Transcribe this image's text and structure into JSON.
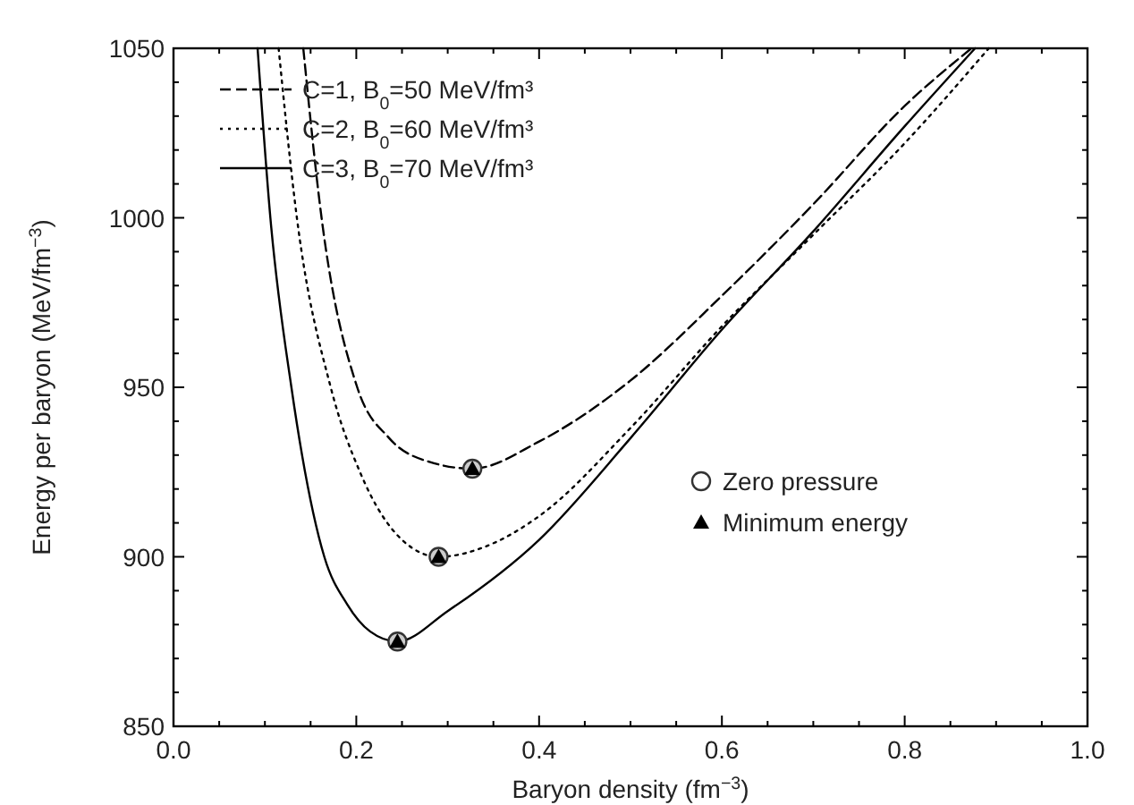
{
  "chart_data": {
    "type": "line",
    "xlabel": "Baryon density (fm$^{−3}$)",
    "ylabel": "Energy per baryon (MeV/fm$^{−3}$)",
    "xlim": [
      0,
      1
    ],
    "ylim": [
      850,
      1050
    ],
    "xticks": [
      {
        "value": 0,
        "label": "0.0"
      },
      {
        "value": 0.05,
        "label": null
      },
      {
        "value": 0.1,
        "label": null
      },
      {
        "value": 0.15,
        "label": null
      },
      {
        "value": 0.2,
        "label": "0.2"
      },
      {
        "value": 0.25,
        "label": null
      },
      {
        "value": 0.3,
        "label": null
      },
      {
        "value": 0.35,
        "label": null
      },
      {
        "value": 0.4,
        "label": "0.4"
      },
      {
        "value": 0.45,
        "label": null
      },
      {
        "value": 0.5,
        "label": null
      },
      {
        "value": 0.55,
        "label": null
      },
      {
        "value": 0.6,
        "label": "0.6"
      },
      {
        "value": 0.65,
        "label": null
      },
      {
        "value": 0.7,
        "label": null
      },
      {
        "value": 0.75,
        "label": null
      },
      {
        "value": 0.8,
        "label": "0.8"
      },
      {
        "value": 0.85,
        "label": null
      },
      {
        "value": 0.9,
        "label": null
      },
      {
        "value": 0.95,
        "label": null
      },
      {
        "value": 1,
        "label": "1.0"
      }
    ],
    "yticks": [
      850,
      {
        "value": 860,
        "label": null
      },
      {
        "value": 870,
        "label": null
      },
      {
        "value": 880,
        "label": null
      },
      {
        "value": 890,
        "label": null
      },
      900,
      {
        "value": 910,
        "label": null
      },
      {
        "value": 920,
        "label": null
      },
      {
        "value": 930,
        "label": null
      },
      {
        "value": 940,
        "label": null
      },
      950,
      {
        "value": 960,
        "label": null
      },
      {
        "value": 970,
        "label": null
      },
      {
        "value": 980,
        "label": null
      },
      {
        "value": 990,
        "label": null
      },
      1000,
      {
        "value": 1010,
        "label": null
      },
      {
        "value": 1020,
        "label": null
      },
      {
        "value": 1030,
        "label": null
      },
      {
        "value": 1040,
        "label": null
      },
      1050
    ],
    "grid": false,
    "legend": "top left",
    "series": [
      {
        "name": "C=1, B$_{0}$=50 MeV/fm³",
        "color": "#000000",
        "line_style": "dashed",
        "marker": "none",
        "x": [
          0.142,
          0.162,
          0.201,
          0.236,
          0.28,
          0.327,
          0.4,
          0.5,
          0.6,
          0.7,
          0.8,
          0.873
        ],
        "values": [
          1050,
          1000,
          950,
          935,
          928,
          926,
          934,
          952,
          977,
          1004,
          1033,
          1050
        ]
      },
      {
        "name": "C=2, B$_{0}$=60 MeV/fm³",
        "color": "#000000",
        "line_style": "dotted",
        "marker": "none",
        "x": [
          0.115,
          0.135,
          0.172,
          0.204,
          0.25,
          0.29,
          0.35,
          0.4,
          0.5,
          0.6,
          0.7,
          0.8,
          0.892
        ],
        "values": [
          1050,
          1000,
          950,
          925,
          905,
          900,
          904,
          912,
          938,
          968,
          995,
          1022,
          1050
        ]
      },
      {
        "name": "C=3, B$_{0}$=70 MeV/fm³",
        "color": "#000000",
        "line_style": "solid",
        "marker": "none",
        "x": [
          0.092,
          0.106,
          0.129,
          0.165,
          0.19,
          0.215,
          0.245,
          0.3,
          0.4,
          0.5,
          0.6,
          0.7,
          0.8,
          0.877
        ],
        "values": [
          1050,
          1000,
          950,
          900,
          886,
          878,
          875,
          884,
          905,
          935,
          967,
          996,
          1027,
          1050
        ]
      },
      {
        "name": "Zero pressure",
        "type": "scatter",
        "color": "#333333",
        "marker": "circle",
        "x": [
          0.327,
          0.29,
          0.245
        ],
        "values": [
          926,
          900,
          875
        ]
      },
      {
        "name": "Minimum energy",
        "type": "scatter",
        "color": "#000000",
        "marker": "triangle",
        "x": [
          0.327,
          0.29,
          0.245
        ],
        "values": [
          926,
          900,
          875
        ]
      }
    ]
  }
}
